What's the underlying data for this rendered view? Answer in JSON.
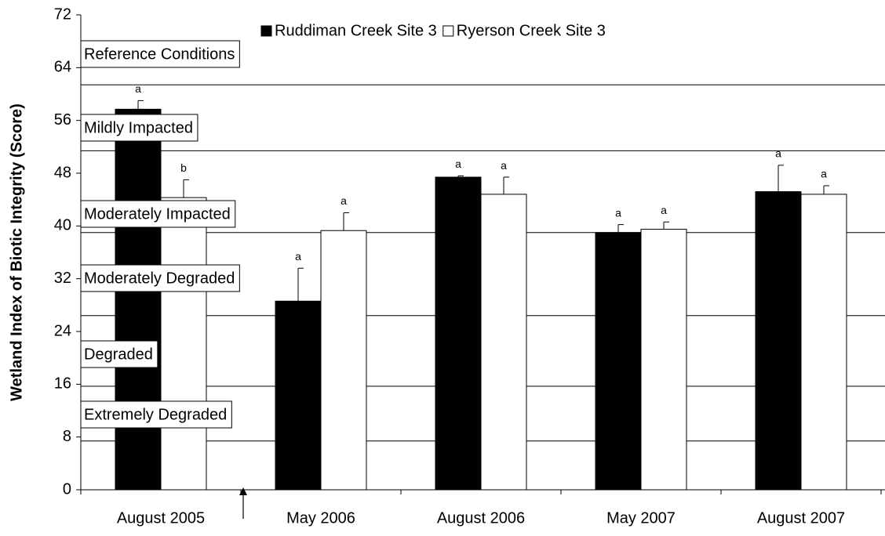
{
  "chart_data": {
    "type": "bar",
    "y_label": "Wetland Index of Biotic Integrity (Score)",
    "categories": [
      "August 2005",
      "May 2006",
      "August 2006",
      "May 2007",
      "August 2007"
    ],
    "series": [
      {
        "name": "Ruddiman Creek Site 3",
        "color": "#000000",
        "values": [
          57.7,
          28.6,
          47.4,
          39.0,
          45.2
        ],
        "errors": [
          1.3,
          5.0,
          0.2,
          1.2,
          4.0
        ],
        "letters": [
          "a",
          "a",
          "a",
          "a",
          "a"
        ]
      },
      {
        "name": "Ryerson Creek Site 3",
        "color": "#ffffff",
        "values": [
          44.3,
          39.3,
          44.8,
          39.5,
          44.8
        ],
        "errors": [
          2.7,
          2.7,
          2.6,
          1.1,
          1.3
        ],
        "letters": [
          "b",
          "a",
          "a",
          "a",
          "a"
        ]
      }
    ],
    "ylim": [
      0,
      72
    ],
    "yticks": [
      0,
      8,
      16,
      24,
      32,
      40,
      48,
      56,
      64,
      72
    ],
    "reference_lines": [
      61.4,
      51.4,
      39.0,
      26.4,
      15.7,
      7.4
    ],
    "condition_labels": [
      "Reference Conditions",
      "Mildly Impacted",
      "Moderately Impacted",
      "Moderately Degraded",
      "Degraded",
      "Extremely Degraded"
    ],
    "legend": "top"
  }
}
